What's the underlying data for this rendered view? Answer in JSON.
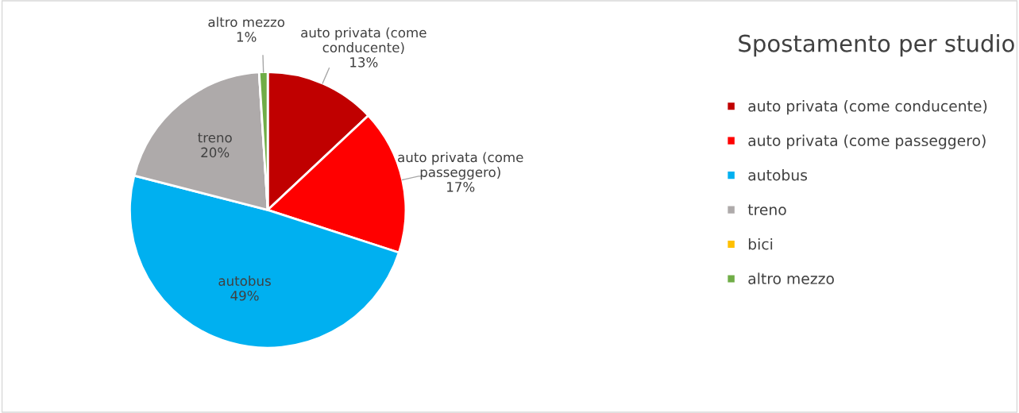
{
  "chart_data": {
    "type": "pie",
    "title": "Spostamento per studio",
    "categories": [
      "auto privata (come conducente)",
      "auto privata (come passeggero)",
      "autobus",
      "treno",
      "bici",
      "altro mezzo"
    ],
    "values": [
      13,
      17,
      49,
      20,
      0,
      1
    ],
    "colors": [
      "#c00000",
      "#ff0000",
      "#00b0f0",
      "#aeaaaa",
      "#ffc000",
      "#70ad47"
    ],
    "value_labels": [
      "13%",
      "17%",
      "49%",
      "20%",
      null,
      "1%"
    ],
    "legend": "right"
  }
}
